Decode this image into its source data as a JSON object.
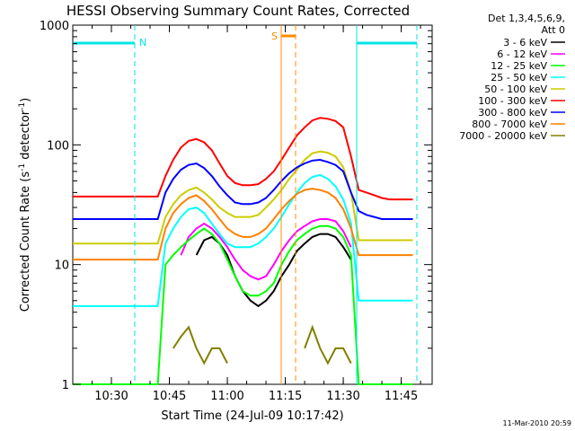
{
  "chart_data": {
    "type": "line",
    "title": "HESSI Observing Summary Count Rates, Corrected",
    "xlabel": "Start Time (24-Jul-09 10:17:42)",
    "ylabel_main": "Corrected Count Rate (s",
    "ylabel_sup1": "-1",
    "ylabel_mid": " detector",
    "ylabel_sup2": "-1",
    "ylabel_end": ")",
    "yscale": "log",
    "ylim": [
      1,
      1000
    ],
    "xlim": [
      "10:20",
      "11:53"
    ],
    "x_ticks": [
      "10:30",
      "10:45",
      "11:00",
      "11:15",
      "11:30",
      "11:45"
    ],
    "y_ticks": [
      "1",
      "10",
      "100",
      "1000"
    ],
    "legend_header": [
      "Det 1,3,4,5,6,9,",
      "Att 0"
    ],
    "footer": "11-Mar-2010 20:59",
    "annotations": [
      {
        "label": "N",
        "color": "#00e5e5"
      },
      {
        "label": "S",
        "color": "#ff8c00"
      }
    ],
    "series": [
      {
        "name": "3 - 6 keV",
        "color": "#000000",
        "values": [
          0,
          0,
          0,
          0,
          0,
          0,
          0,
          0,
          0,
          0,
          0,
          0,
          0,
          0,
          0,
          0,
          12,
          16,
          17,
          15,
          12,
          8,
          6,
          5,
          4.5,
          5,
          6,
          8,
          10,
          13,
          15,
          17,
          18,
          18,
          17,
          14,
          11,
          0,
          0,
          0,
          0,
          0,
          0,
          0,
          0
        ]
      },
      {
        "name": "6 - 12 keV",
        "color": "#ff00ff",
        "values": [
          0,
          0,
          0,
          0,
          0,
          0,
          0,
          0,
          0,
          0,
          0,
          0,
          0,
          0,
          12,
          17,
          20,
          22,
          20,
          17,
          14,
          11,
          9,
          8,
          7.5,
          8,
          10,
          13,
          16,
          19,
          21,
          23,
          24,
          24,
          23,
          19,
          14,
          0,
          0,
          0,
          0,
          0,
          0,
          0,
          0
        ]
      },
      {
        "name": "12 - 25 keV",
        "color": "#00ff00",
        "values": [
          1,
          1,
          1,
          1,
          1,
          1,
          1,
          1,
          1,
          1,
          1,
          1,
          10,
          12,
          14,
          16,
          18,
          20,
          18,
          15,
          11,
          8,
          6,
          5.5,
          5.5,
          6,
          7,
          10,
          13,
          16,
          18,
          20,
          21,
          21,
          20,
          17,
          12,
          1,
          1,
          1,
          1,
          1,
          1,
          1,
          1
        ]
      },
      {
        "name": "25 - 50 keV",
        "color": "#00ffff",
        "values": [
          4.5,
          4.5,
          4.5,
          4.5,
          4.5,
          4.5,
          4.5,
          4.5,
          4.5,
          4.5,
          4.5,
          4.5,
          15,
          20,
          25,
          29,
          30,
          27,
          22,
          18,
          15,
          14,
          14,
          14,
          15,
          17,
          20,
          25,
          32,
          40,
          48,
          54,
          56,
          52,
          45,
          35,
          22,
          5,
          5,
          5,
          5,
          5,
          5,
          5,
          5
        ]
      },
      {
        "name": "50 - 100 keV",
        "color": "#cccc00",
        "values": [
          15,
          15,
          15,
          15,
          15,
          15,
          15,
          15,
          15,
          15,
          15,
          15,
          25,
          32,
          38,
          42,
          44,
          40,
          35,
          30,
          27,
          25,
          25,
          25,
          26,
          30,
          35,
          42,
          52,
          62,
          75,
          85,
          88,
          86,
          80,
          65,
          40,
          16,
          16,
          16,
          16,
          16,
          16,
          16,
          16
        ]
      },
      {
        "name": "100 - 300 keV",
        "color": "#ff0000",
        "values": [
          37,
          37,
          37,
          37,
          37,
          37,
          37,
          37,
          37,
          37,
          37,
          37,
          55,
          75,
          95,
          108,
          112,
          105,
          90,
          70,
          55,
          48,
          46,
          46,
          47,
          52,
          60,
          75,
          95,
          120,
          140,
          160,
          168,
          165,
          158,
          140,
          80,
          42,
          40,
          38,
          36,
          35,
          35,
          35,
          35
        ]
      },
      {
        "name": "300 - 800 keV",
        "color": "#0000ff",
        "values": [
          24,
          24,
          24,
          24,
          24,
          24,
          24,
          24,
          24,
          24,
          24,
          24,
          40,
          52,
          62,
          68,
          70,
          64,
          55,
          45,
          38,
          33,
          32,
          32,
          33,
          36,
          42,
          50,
          58,
          65,
          70,
          74,
          75,
          72,
          68,
          60,
          40,
          28,
          26,
          25,
          24,
          24,
          24,
          24,
          24
        ]
      },
      {
        "name": "800 - 7000 keV",
        "color": "#ff8000",
        "values": [
          11,
          11,
          11,
          11,
          11,
          11,
          11,
          11,
          11,
          11,
          11,
          11,
          20,
          27,
          32,
          36,
          38,
          34,
          29,
          24,
          20,
          18,
          17,
          17,
          18,
          20,
          24,
          29,
          34,
          39,
          42,
          43,
          42,
          40,
          36,
          29,
          20,
          12,
          12,
          12,
          12,
          12,
          12,
          12,
          12
        ]
      },
      {
        "name": "7000 - 20000 keV",
        "color": "#808000",
        "values": [
          0,
          0,
          0,
          0,
          0,
          0,
          0,
          0,
          0,
          0,
          0,
          0,
          0,
          2,
          2.5,
          3,
          2,
          1.5,
          2,
          2,
          1.5,
          0,
          0,
          0,
          0,
          0,
          0,
          0,
          0,
          0,
          2,
          3,
          2,
          1.5,
          2,
          2,
          1.5,
          0,
          0,
          0,
          0,
          0,
          0,
          0,
          0
        ]
      }
    ]
  }
}
